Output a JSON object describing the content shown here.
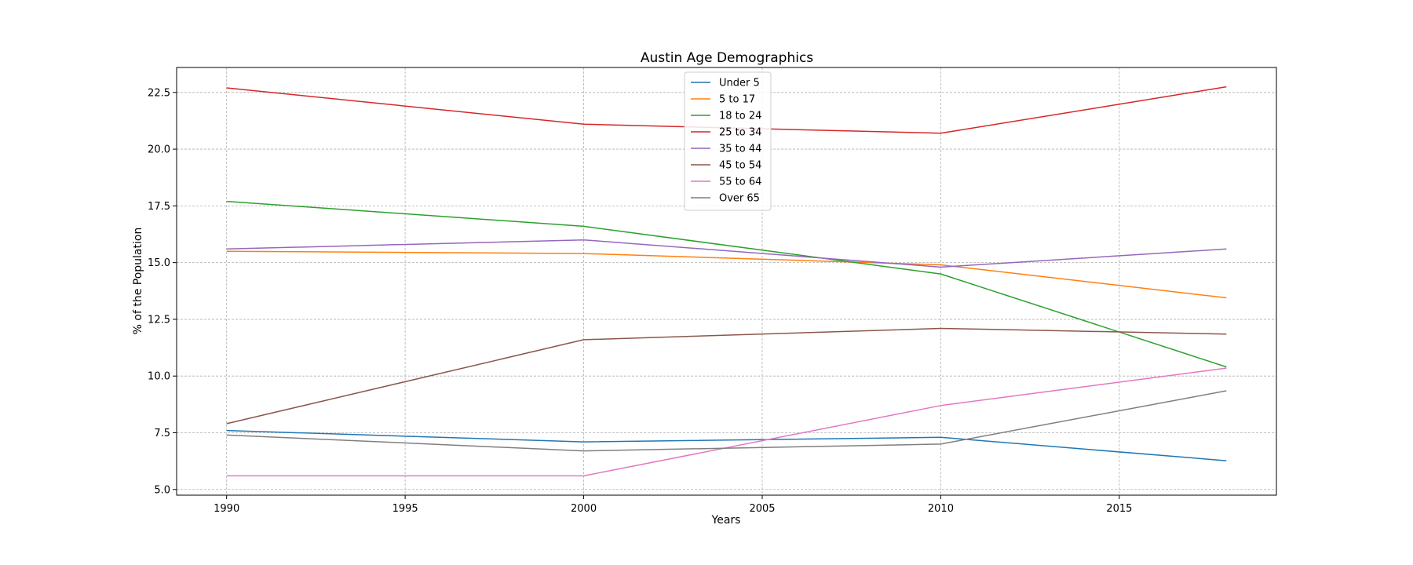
{
  "chart_data": {
    "type": "line",
    "title": "Austin Age Demographics",
    "xlabel": "Years",
    "ylabel": "% of the Population",
    "x": [
      1990,
      2000,
      2010,
      2018
    ],
    "xlim": [
      1988.6,
      2019.4
    ],
    "ylim": [
      4.75,
      23.6
    ],
    "xticks": [
      1990,
      1995,
      2000,
      2005,
      2010,
      2015
    ],
    "yticks": [
      5.0,
      7.5,
      10.0,
      12.5,
      15.0,
      17.5,
      20.0,
      22.5
    ],
    "grid": true,
    "legend_position": "upper center",
    "series": [
      {
        "name": "Under 5",
        "color": "#1f77b4",
        "values": [
          7.6,
          7.1,
          7.3,
          6.27
        ]
      },
      {
        "name": "5 to 17",
        "color": "#ff7f0e",
        "values": [
          15.5,
          15.4,
          14.9,
          13.45
        ]
      },
      {
        "name": "18 to 24",
        "color": "#2ca02c",
        "values": [
          17.7,
          16.6,
          14.5,
          10.4
        ]
      },
      {
        "name": "25 to 34",
        "color": "#d62728",
        "values": [
          22.7,
          21.1,
          20.7,
          22.75
        ]
      },
      {
        "name": "35 to 44",
        "color": "#9467bd",
        "values": [
          15.6,
          16.0,
          14.8,
          15.6
        ]
      },
      {
        "name": "45 to 54",
        "color": "#8c564b",
        "values": [
          7.9,
          11.6,
          12.1,
          11.85
        ]
      },
      {
        "name": "55 to 64",
        "color": "#e377c2",
        "values": [
          5.6,
          5.6,
          8.7,
          10.35
        ]
      },
      {
        "name": "Over 65",
        "color": "#7f7f7f",
        "values": [
          7.4,
          6.7,
          7.0,
          9.35
        ]
      }
    ]
  }
}
